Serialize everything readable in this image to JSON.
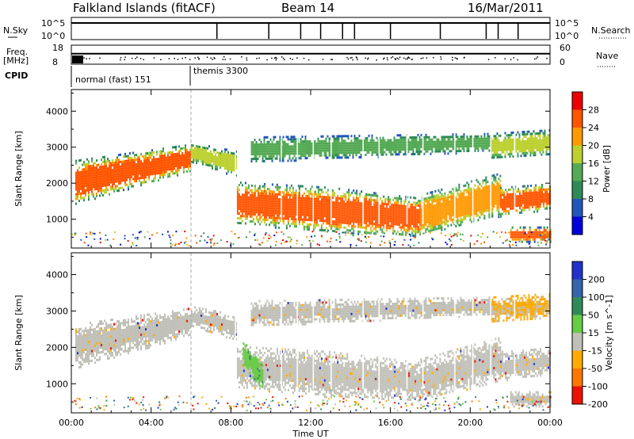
{
  "header": {
    "station": "Falkland Islands (fitACF)",
    "beam": "Beam 14",
    "date": "16/Mar/2011"
  },
  "status_panels": {
    "nsky_label": "N.Sky",
    "nsky_ticks": [
      "10^5",
      "10^0"
    ],
    "nsearch_label": "N.Search",
    "nsearch_ticks": [
      "10^5",
      "10^0"
    ],
    "freq_label": "Freq.",
    "freq_unit": "[MHz]",
    "freq_ticks": [
      "18",
      "8"
    ],
    "nave_label": "Nave",
    "nave_ticks": [
      "60",
      "0"
    ],
    "cpid_label": "CPID",
    "cpid_modes": [
      {
        "name": "normal (fast) 151",
        "start_hour": 0,
        "end_hour": 6
      },
      {
        "name": "themis 3300",
        "start_hour": 6,
        "end_hour": 24
      }
    ],
    "search_spikes_hours": [
      7.3,
      9.9,
      11.5,
      12.5,
      13.6,
      14.2,
      16.0,
      18.5,
      20.8,
      21.4,
      22.4
    ],
    "nave_level": 0.55
  },
  "chart_data": [
    {
      "type": "heatmap",
      "panel": "power",
      "ylabel": "Slant Range [km]",
      "xlabel": "",
      "x_range_hours": [
        0,
        24
      ],
      "ylim": [
        200,
        4600
      ],
      "y_ticks": [
        1000,
        2000,
        3000,
        4000
      ],
      "colorbar_label": "Power [dB]",
      "colorbar_ticks": [
        4,
        8,
        12,
        16,
        20,
        24,
        28
      ],
      "colorbar_range": [
        0,
        32
      ],
      "colors": [
        "#0000dd",
        "#2255bb",
        "#2e8b57",
        "#55aa55",
        "#bcd030",
        "#ff9900",
        "#ff5500",
        "#ee0000"
      ],
      "bands": [
        {
          "t": [
            0.2,
            6.0
          ],
          "r": [
            1450,
            2650
          ],
          "r_end": [
            2350,
            3100
          ],
          "level": 24
        },
        {
          "t": [
            6.0,
            8.3
          ],
          "r": [
            2600,
            3150
          ],
          "r_end": [
            2200,
            2900
          ],
          "level": 14
        },
        {
          "t": [
            8.3,
            13.0
          ],
          "r": [
            900,
            2050
          ],
          "r_end": [
            650,
            1900
          ],
          "level": 24
        },
        {
          "t": [
            13.0,
            17.5
          ],
          "r": [
            650,
            1900
          ],
          "r_end": [
            550,
            1600
          ],
          "level": 22
        },
        {
          "t": [
            17.5,
            21.5
          ],
          "r": [
            550,
            1700
          ],
          "r_end": [
            1100,
            2300
          ],
          "level": 20
        },
        {
          "t": [
            21.5,
            24.0
          ],
          "r": [
            1100,
            1900
          ],
          "r_end": [
            1300,
            2000
          ],
          "level": 24
        },
        {
          "t": [
            22.0,
            24.0
          ],
          "r": [
            400,
            800
          ],
          "r_end": [
            400,
            800
          ],
          "level": 22
        },
        {
          "t": [
            9.0,
            21.0
          ],
          "r": [
            2600,
            3300
          ],
          "r_end": [
            2900,
            3400
          ],
          "level": 10
        },
        {
          "t": [
            21.0,
            24.0
          ],
          "r": [
            2700,
            3400
          ],
          "r_end": [
            2800,
            3500
          ],
          "level": 16
        }
      ]
    },
    {
      "type": "heatmap",
      "panel": "velocity",
      "ylabel": "Slant Range [km]",
      "xlabel": "Time UT",
      "x_range_hours": [
        0,
        24
      ],
      "x_ticks": [
        "00:00",
        "04:00",
        "08:00",
        "12:00",
        "16:00",
        "20:00",
        "00:00"
      ],
      "ylim": [
        200,
        4600
      ],
      "y_ticks": [
        1000,
        2000,
        3000,
        4000
      ],
      "colorbar_label": "Velocity [m s^-1]",
      "colorbar_ticks": [
        "200",
        "100",
        "50",
        "15",
        "-15",
        "-50",
        "-100",
        "-200"
      ],
      "colors": [
        "#2233cc",
        "#3366aa",
        "#2e8b57",
        "#66cc44",
        "#c0c0b8",
        "#ffaa00",
        "#ff7700",
        "#ee1100"
      ],
      "ground_scatter_color": "#c0c0b8",
      "bands": [
        {
          "t": [
            0.2,
            6.0
          ],
          "r": [
            1450,
            2650
          ],
          "r_end": [
            2350,
            3100
          ],
          "v": 0
        },
        {
          "t": [
            6.0,
            8.3
          ],
          "r": [
            2600,
            3150
          ],
          "r_end": [
            2200,
            2900
          ],
          "v": 0
        },
        {
          "t": [
            8.3,
            13.0
          ],
          "r": [
            900,
            2050
          ],
          "r_end": [
            650,
            1900
          ],
          "v": 0
        },
        {
          "t": [
            13.0,
            17.5
          ],
          "r": [
            650,
            1900
          ],
          "r_end": [
            550,
            1600
          ],
          "v": 0
        },
        {
          "t": [
            17.5,
            21.5
          ],
          "r": [
            550,
            1700
          ],
          "r_end": [
            1100,
            2300
          ],
          "v": 0
        },
        {
          "t": [
            21.5,
            24.0
          ],
          "r": [
            1100,
            1900
          ],
          "r_end": [
            1300,
            2000
          ],
          "v": 0
        },
        {
          "t": [
            22.0,
            24.0
          ],
          "r": [
            400,
            800
          ],
          "r_end": [
            400,
            800
          ],
          "v": 0
        },
        {
          "t": [
            9.0,
            21.0
          ],
          "r": [
            2600,
            3300
          ],
          "r_end": [
            2900,
            3400
          ],
          "v": 0
        },
        {
          "t": [
            21.0,
            24.0
          ],
          "r": [
            2700,
            3400
          ],
          "r_end": [
            2800,
            3500
          ],
          "v": -60
        },
        {
          "t": [
            8.6,
            9.6
          ],
          "r": [
            1500,
            2200
          ],
          "r_end": [
            800,
            1500
          ],
          "v": 30
        }
      ]
    }
  ]
}
